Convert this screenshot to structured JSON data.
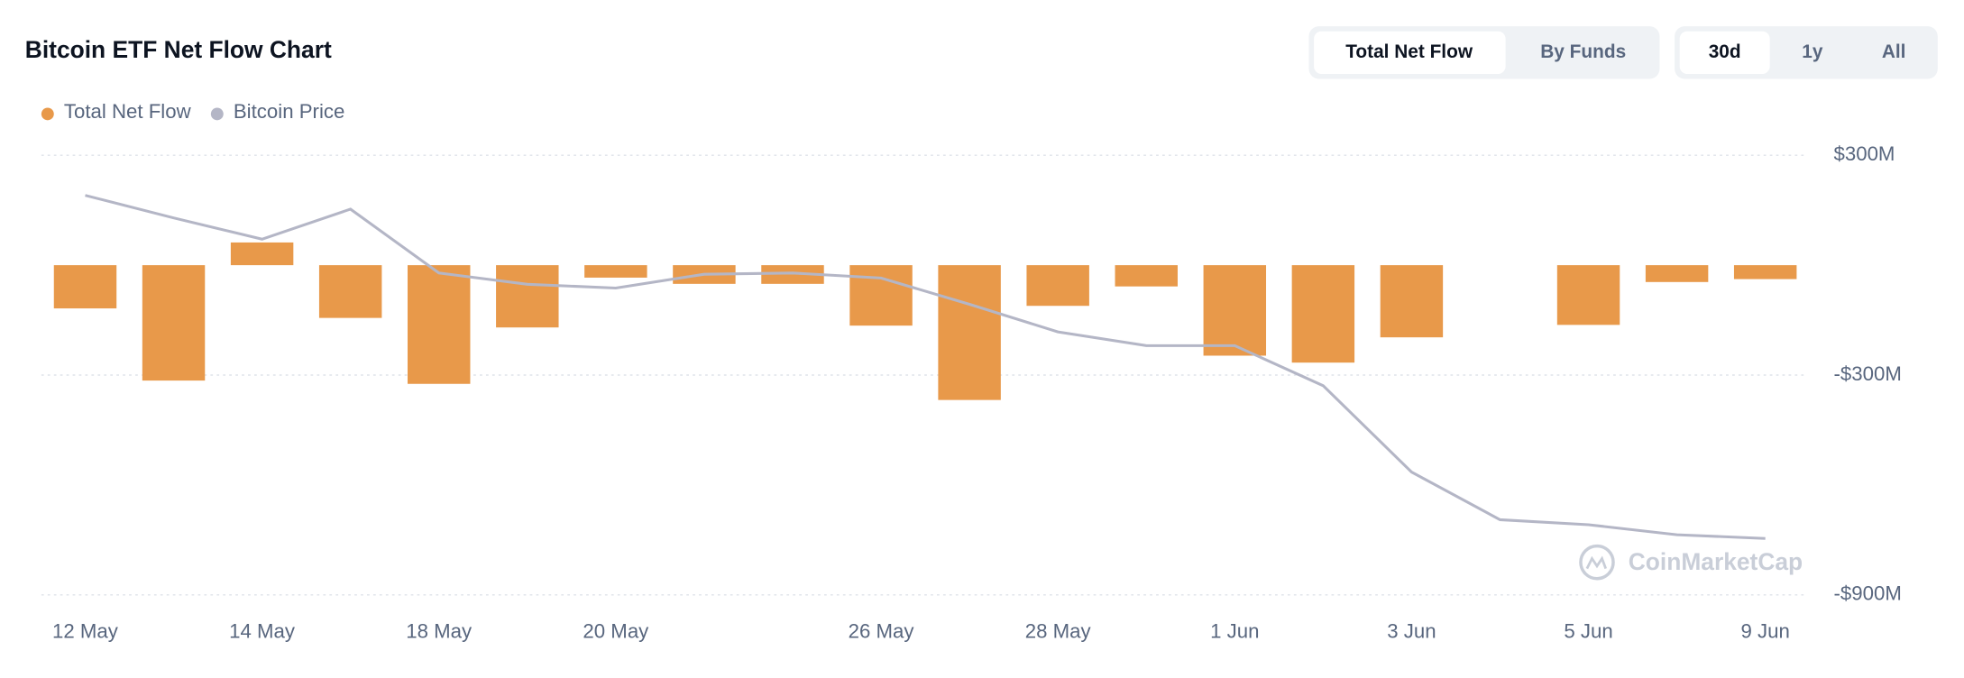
{
  "chart_data": {
    "type": "bar",
    "title": "Bitcoin ETF Net Flow Chart",
    "categories": [
      "12 May",
      null,
      "14 May",
      null,
      "18 May",
      null,
      "20 May",
      null,
      null,
      "26 May",
      null,
      "28 May",
      null,
      "1 Jun",
      null,
      "3 Jun",
      null,
      "5 Jun",
      null,
      "9 Jun"
    ],
    "series": [
      {
        "name": "Total Net Flow",
        "color": "#e8994a",
        "values": [
          -118,
          -315,
          62,
          -144,
          -324,
          -170,
          -34,
          -51,
          -51,
          -165,
          -368,
          -111,
          -58,
          -247,
          -266,
          -197,
          null,
          -163,
          -46,
          -38
        ]
      },
      {
        "name": "Bitcoin Price",
        "color": "#b4b6c6",
        "type": "line",
        "axis": "y2",
        "values": [
          319,
          301,
          284,
          308,
          257,
          248,
          245,
          256,
          257,
          253,
          232,
          210,
          199,
          199,
          167,
          98,
          60,
          56,
          48,
          45
        ]
      }
    ],
    "ylim": [
      -900,
      300
    ],
    "yticks": [
      {
        "value": 300,
        "label": "$300M"
      },
      {
        "value": -300,
        "label": "-$300M"
      },
      {
        "value": -900,
        "label": "-$900M"
      }
    ],
    "y2lim": [
      0,
      351
    ],
    "grid": true,
    "watermark": "CoinMarketCap"
  },
  "controls": {
    "view": [
      "Total Net Flow",
      "By Funds"
    ],
    "range": [
      "30d",
      "1y",
      "All"
    ]
  }
}
